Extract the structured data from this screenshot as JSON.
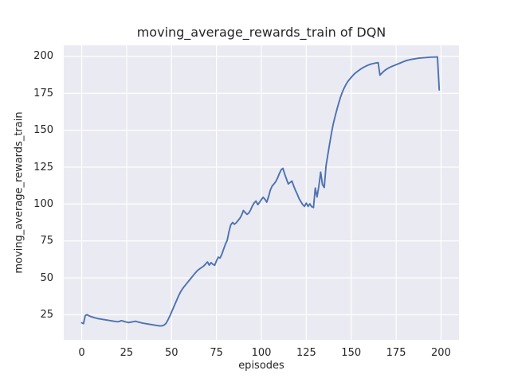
{
  "style": {
    "figure_background": "#ffffff",
    "plot_background": "#eaeaf2",
    "grid_color": "#ffffff",
    "line_color": "#4c72b0",
    "text_color": "#262626"
  },
  "chart_data": {
    "type": "line",
    "title": "moving_average_rewards_train of DQN",
    "xlabel": "episodes",
    "ylabel": "moving_average_rewards_train",
    "x_ticks": [
      0,
      25,
      50,
      75,
      100,
      125,
      150,
      175,
      200
    ],
    "y_ticks": [
      25,
      50,
      75,
      100,
      125,
      150,
      175,
      200
    ],
    "xlim": [
      -10,
      210
    ],
    "ylim": [
      8,
      207.5
    ],
    "grid": true,
    "legend": false,
    "series": [
      {
        "name": "moving_average_rewards_train",
        "x_start": 0,
        "x_step": 1,
        "values": [
          19.5,
          19.0,
          24.5,
          25.0,
          24.3,
          23.8,
          23.4,
          23.0,
          22.7,
          22.4,
          22.2,
          22.0,
          21.8,
          21.6,
          21.4,
          21.2,
          21.0,
          20.8,
          20.6,
          20.4,
          20.2,
          20.5,
          21.0,
          20.7,
          20.3,
          20.0,
          19.7,
          19.9,
          20.1,
          20.4,
          20.6,
          20.2,
          19.9,
          19.6,
          19.3,
          19.1,
          18.9,
          18.7,
          18.5,
          18.3,
          18.1,
          17.9,
          17.7,
          17.5,
          17.4,
          17.6,
          18.1,
          19.3,
          21.5,
          24.0,
          26.8,
          29.6,
          32.4,
          35.2,
          38.0,
          40.4,
          42.4,
          44.0,
          45.5,
          47.0,
          48.5,
          50.0,
          51.5,
          53.0,
          54.4,
          55.5,
          56.4,
          57.2,
          58.1,
          59.4,
          60.8,
          58.6,
          60.3,
          59.2,
          58.5,
          61.5,
          64.0,
          63.4,
          66.0,
          69.5,
          72.8,
          75.5,
          81.5,
          86.0,
          87.5,
          86.3,
          87.3,
          88.8,
          90.3,
          92.5,
          95.6,
          94.2,
          93.0,
          93.9,
          96.0,
          98.7,
          100.8,
          102.0,
          99.6,
          101.2,
          103.0,
          104.6,
          103.2,
          101.3,
          105.0,
          109.5,
          112.2,
          113.6,
          115.2,
          117.6,
          120.6,
          123.2,
          124.2,
          120.2,
          116.8,
          113.6,
          114.6,
          115.6,
          112.2,
          109.2,
          106.6,
          103.6,
          101.6,
          99.6,
          98.4,
          100.6,
          98.4,
          100.1,
          98.2,
          97.6,
          110.8,
          104.8,
          112.2,
          121.6,
          113.2,
          111.2,
          126.0,
          133.5,
          140.8,
          148.0,
          154.2,
          159.2,
          163.8,
          168.2,
          172.2,
          175.6,
          178.4,
          180.8,
          182.8,
          184.4,
          185.8,
          187.2,
          188.4,
          189.4,
          190.3,
          191.2,
          192.0,
          192.7,
          193.3,
          193.9,
          194.4,
          194.8,
          195.1,
          195.4,
          195.6,
          195.8,
          187.3,
          188.6,
          189.8,
          190.8,
          191.6,
          192.3,
          192.9,
          193.4,
          193.9,
          194.4,
          194.9,
          195.4,
          195.9,
          196.4,
          196.9,
          197.3,
          197.6,
          197.9,
          198.1,
          198.3,
          198.5,
          198.7,
          198.9,
          199.0,
          199.1,
          199.2,
          199.3,
          199.4,
          199.5,
          199.5,
          199.6,
          199.6,
          199.7,
          177.3
        ]
      }
    ]
  }
}
